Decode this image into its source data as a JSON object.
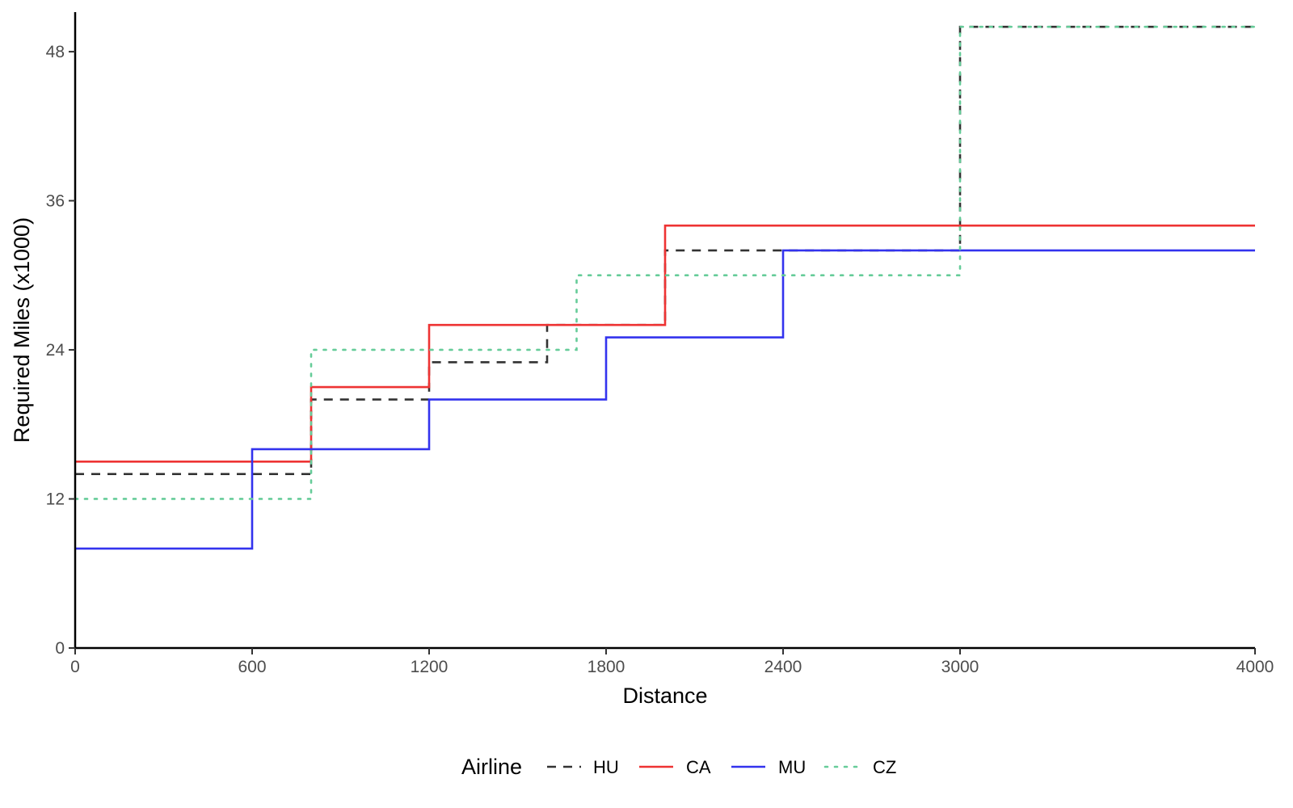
{
  "chart_data": {
    "type": "line",
    "subtype": "step",
    "xlabel": "Distance",
    "ylabel": "Required Miles (x1000)",
    "xlim": [
      0,
      4000
    ],
    "ylim": [
      0,
      50
    ],
    "x_ticks": [
      0,
      600,
      1200,
      1800,
      2400,
      3000,
      4000
    ],
    "y_ticks": [
      0,
      12,
      24,
      36,
      48
    ],
    "grid": false,
    "legend": {
      "title": "Airline",
      "position": "bottom"
    },
    "series": [
      {
        "name": "HU",
        "color": "#333333",
        "dash": "dashed",
        "x": [
          0,
          800,
          1200,
          1600,
          2000,
          3000,
          4000
        ],
        "y": [
          14,
          20,
          23,
          26,
          32,
          50,
          50
        ]
      },
      {
        "name": "CA",
        "color": "#ee3333",
        "dash": "solid",
        "x": [
          0,
          800,
          1200,
          2000,
          4000
        ],
        "y": [
          15,
          21,
          26,
          34,
          34
        ]
      },
      {
        "name": "MU",
        "color": "#3333ee",
        "dash": "solid",
        "x": [
          0,
          600,
          1200,
          1800,
          2400,
          4000
        ],
        "y": [
          8,
          16,
          20,
          25,
          32,
          32
        ]
      },
      {
        "name": "CZ",
        "color": "#66cc99",
        "dash": "dotted",
        "x": [
          0,
          800,
          1700,
          3000,
          4000
        ],
        "y": [
          12,
          24,
          30,
          50,
          50
        ]
      }
    ]
  }
}
